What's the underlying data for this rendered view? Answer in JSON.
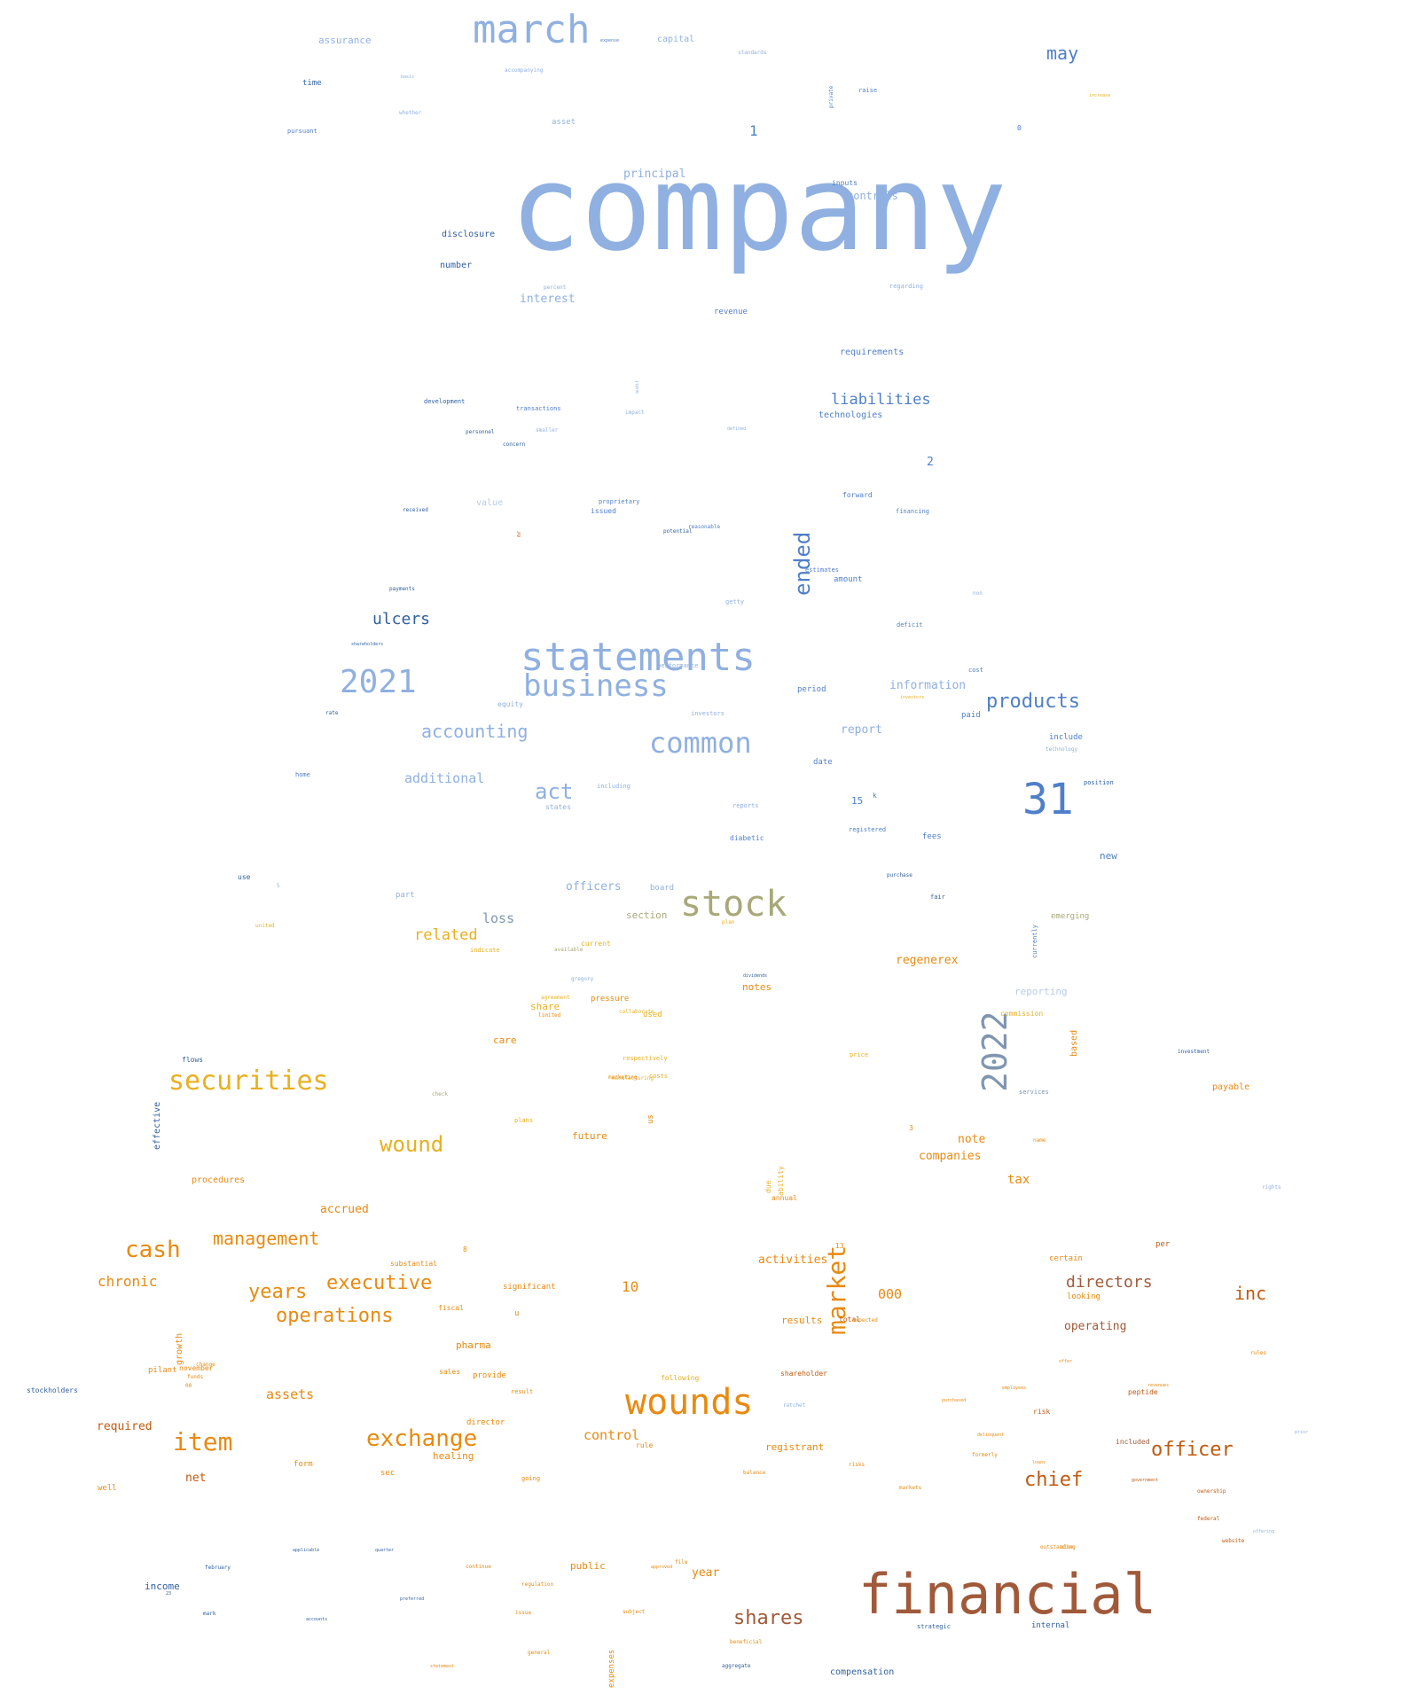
{
  "palette": {
    "light_blue": "#8fb0e0",
    "mid_blue": "#4f7fc8",
    "dark_blue": "#2f5f9f",
    "pale_blue": "#b8cbe8",
    "grey_blue": "#7f96b0",
    "olive": "#a8a878",
    "gold": "#e8b020",
    "orange": "#e88a10",
    "dark_orange": "#d86a00",
    "rust": "#c05a10",
    "brown": "#a05a3a"
  },
  "words": [
    {
      "text": "company",
      "color": "light_blue"
    },
    {
      "text": "financial",
      "color": "brown"
    },
    {
      "text": "statements",
      "color": "light_blue"
    },
    {
      "text": "march",
      "color": "light_blue"
    },
    {
      "text": "stock",
      "color": "olive"
    },
    {
      "text": "wounds",
      "color": "orange"
    },
    {
      "text": "31",
      "color": "mid_blue"
    },
    {
      "text": "2021",
      "color": "light_blue"
    },
    {
      "text": "2022",
      "color": "grey_blue"
    },
    {
      "text": "business",
      "color": "light_blue"
    },
    {
      "text": "common",
      "color": "light_blue"
    },
    {
      "text": "securities",
      "color": "gold"
    },
    {
      "text": "market",
      "color": "orange"
    },
    {
      "text": "products",
      "color": "mid_blue"
    },
    {
      "text": "exchange",
      "color": "orange"
    },
    {
      "text": "item",
      "color": "orange"
    },
    {
      "text": "cash",
      "color": "orange"
    },
    {
      "text": "shares",
      "color": "brown"
    },
    {
      "text": "officer",
      "color": "rust"
    },
    {
      "text": "chief",
      "color": "rust"
    },
    {
      "text": "wound",
      "color": "gold"
    },
    {
      "text": "act",
      "color": "light_blue"
    },
    {
      "text": "ended",
      "color": "mid_blue"
    },
    {
      "text": "may",
      "color": "mid_blue"
    },
    {
      "text": "management",
      "color": "orange"
    },
    {
      "text": "executive",
      "color": "orange"
    },
    {
      "text": "operations",
      "color": "orange"
    },
    {
      "text": "years",
      "color": "orange"
    },
    {
      "text": "accounting",
      "color": "light_blue"
    },
    {
      "text": "ulcers",
      "color": "dark_blue"
    },
    {
      "text": "directors",
      "color": "brown"
    },
    {
      "text": "inc",
      "color": "rust"
    },
    {
      "text": "liabilities",
      "color": "mid_blue"
    },
    {
      "text": "chronic",
      "color": "orange"
    },
    {
      "text": "related",
      "color": "gold"
    },
    {
      "text": "additional",
      "color": "light_blue"
    },
    {
      "text": "control",
      "color": "orange"
    },
    {
      "text": "loss",
      "color": "grey_blue"
    },
    {
      "text": "officers",
      "color": "light_blue"
    },
    {
      "text": "assets",
      "color": "orange"
    },
    {
      "text": "interest",
      "color": "light_blue"
    },
    {
      "text": "principal",
      "color": "light_blue"
    },
    {
      "text": "assurance",
      "color": "light_blue"
    },
    {
      "text": "capital",
      "color": "light_blue"
    },
    {
      "text": "controls",
      "color": "light_blue"
    },
    {
      "text": "10",
      "color": "orange"
    },
    {
      "text": "000",
      "color": "orange"
    },
    {
      "text": "activities",
      "color": "orange"
    },
    {
      "text": "regenerex",
      "color": "orange"
    },
    {
      "text": "note",
      "color": "orange"
    },
    {
      "text": "companies",
      "color": "orange"
    },
    {
      "text": "tax",
      "color": "orange"
    },
    {
      "text": "net",
      "color": "rust"
    },
    {
      "text": "required",
      "color": "rust"
    },
    {
      "text": "operating",
      "color": "brown"
    },
    {
      "text": "accrued",
      "color": "orange"
    },
    {
      "text": "information",
      "color": "light_blue"
    },
    {
      "text": "report",
      "color": "light_blue"
    },
    {
      "text": "reporting",
      "color": "pale_blue"
    },
    {
      "text": "income",
      "color": "dark_blue"
    },
    {
      "text": "notes",
      "color": "orange"
    },
    {
      "text": "future",
      "color": "orange"
    },
    {
      "text": "care",
      "color": "orange"
    },
    {
      "text": "share",
      "color": "gold"
    },
    {
      "text": "pharma",
      "color": "orange"
    },
    {
      "text": "public",
      "color": "orange"
    },
    {
      "text": "year",
      "color": "orange"
    },
    {
      "text": "registrant",
      "color": "orange"
    },
    {
      "text": "healing",
      "color": "orange"
    },
    {
      "text": "results",
      "color": "orange"
    },
    {
      "text": "procedures",
      "color": "orange"
    },
    {
      "text": "section",
      "color": "olive"
    },
    {
      "text": "technologies",
      "color": "mid_blue"
    },
    {
      "text": "requirements",
      "color": "mid_blue"
    },
    {
      "text": "disclosure",
      "color": "dark_blue"
    },
    {
      "text": "number",
      "color": "dark_blue"
    },
    {
      "text": "time",
      "color": "dark_blue"
    },
    {
      "text": "revenue",
      "color": "mid_blue"
    },
    {
      "text": "period",
      "color": "mid_blue"
    },
    {
      "text": "paid",
      "color": "mid_blue"
    },
    {
      "text": "include",
      "color": "mid_blue"
    },
    {
      "text": "date",
      "color": "mid_blue"
    },
    {
      "text": "15",
      "color": "mid_blue"
    },
    {
      "text": "fees",
      "color": "mid_blue"
    },
    {
      "text": "new",
      "color": "mid_blue"
    },
    {
      "text": "2",
      "color": "mid_blue"
    },
    {
      "text": "1",
      "color": "mid_blue"
    },
    {
      "text": "asset",
      "color": "light_blue"
    },
    {
      "text": "board",
      "color": "light_blue"
    },
    {
      "text": "part",
      "color": "light_blue"
    },
    {
      "text": "emerging",
      "color": "olive"
    },
    {
      "text": "payable",
      "color": "orange"
    },
    {
      "text": "based",
      "color": "orange"
    },
    {
      "text": "per",
      "color": "rust"
    },
    {
      "text": "certain",
      "color": "orange"
    },
    {
      "text": "significant",
      "color": "orange"
    },
    {
      "text": "shareholder",
      "color": "rust"
    },
    {
      "text": "peptide",
      "color": "rust"
    },
    {
      "text": "risk",
      "color": "rust"
    },
    {
      "text": "compensation",
      "color": "dark_blue"
    },
    {
      "text": "internal",
      "color": "dark_blue"
    },
    {
      "text": "stockholders",
      "color": "dark_blue"
    },
    {
      "text": "effective",
      "color": "dark_blue"
    },
    {
      "text": "growth",
      "color": "orange"
    },
    {
      "text": "pilant",
      "color": "orange"
    },
    {
      "text": "expenses",
      "color": "orange"
    },
    {
      "text": "form",
      "color": "orange"
    },
    {
      "text": "sec",
      "color": "orange"
    },
    {
      "text": "well",
      "color": "orange"
    },
    {
      "text": "director",
      "color": "orange"
    },
    {
      "text": "current",
      "color": "gold"
    },
    {
      "text": "used",
      "color": "gold"
    },
    {
      "text": "us",
      "color": "orange"
    },
    {
      "text": "looking",
      "color": "orange"
    },
    {
      "text": "diabetic",
      "color": "mid_blue"
    },
    {
      "text": "value",
      "color": "pale_blue"
    },
    {
      "text": "amount",
      "color": "mid_blue"
    },
    {
      "text": "forward",
      "color": "mid_blue"
    },
    {
      "text": "financing",
      "color": "mid_blue"
    },
    {
      "text": "issued",
      "color": "mid_blue"
    },
    {
      "text": "equity",
      "color": "light_blue"
    },
    {
      "text": "standards",
      "color": "light_blue"
    },
    {
      "text": "raise",
      "color": "mid_blue"
    },
    {
      "text": "inputs",
      "color": "mid_blue"
    },
    {
      "text": "development",
      "color": "dark_blue"
    },
    {
      "text": "transactions",
      "color": "mid_blue"
    },
    {
      "text": "deficit",
      "color": "mid_blue"
    },
    {
      "text": "cost",
      "color": "mid_blue"
    },
    {
      "text": "position",
      "color": "dark_blue"
    },
    {
      "text": "states",
      "color": "light_blue"
    },
    {
      "text": "use",
      "color": "dark_blue"
    },
    {
      "text": "flows",
      "color": "dark_blue"
    },
    {
      "text": "pursuant",
      "color": "mid_blue"
    },
    {
      "text": "0",
      "color": "mid_blue"
    },
    {
      "text": "k",
      "color": "mid_blue"
    },
    {
      "text": "commission",
      "color": "gold"
    },
    {
      "text": "services",
      "color": "grey_blue"
    },
    {
      "text": "ability",
      "color": "gold"
    },
    {
      "text": "due",
      "color": "gold"
    },
    {
      "text": "annual",
      "color": "orange"
    },
    {
      "text": "substantial",
      "color": "orange"
    },
    {
      "text": "fiscal",
      "color": "orange"
    },
    {
      "text": "sales",
      "color": "orange"
    },
    {
      "text": "provide",
      "color": "orange"
    },
    {
      "text": "rule",
      "color": "orange"
    },
    {
      "text": "following",
      "color": "gold"
    },
    {
      "text": "pressure",
      "color": "orange"
    },
    {
      "text": "3",
      "color": "orange"
    },
    {
      "text": "8",
      "color": "orange"
    },
    {
      "text": "13",
      "color": "orange"
    },
    {
      "text": "u",
      "color": "orange"
    },
    {
      "text": "total",
      "color": "rust"
    },
    {
      "text": "included",
      "color": "brown"
    },
    {
      "text": "strategic",
      "color": "dark_blue"
    },
    {
      "text": "home",
      "color": "mid_blue"
    },
    {
      "text": "regarding",
      "color": "light_blue"
    },
    {
      "text": "getty",
      "color": "light_blue"
    },
    {
      "text": "performance",
      "color": "light_blue"
    },
    {
      "text": "reports",
      "color": "light_blue"
    },
    {
      "text": "including",
      "color": "light_blue"
    },
    {
      "text": "investors",
      "color": "light_blue"
    },
    {
      "text": "reasonable",
      "color": "mid_blue"
    },
    {
      "text": "proprietary",
      "color": "mid_blue"
    },
    {
      "text": "estimates",
      "color": "mid_blue"
    },
    {
      "text": "registered",
      "color": "mid_blue"
    },
    {
      "text": "purchase",
      "color": "dark_blue"
    },
    {
      "text": "fair",
      "color": "dark_blue"
    },
    {
      "text": "technology",
      "color": "light_blue"
    },
    {
      "text": "non",
      "color": "light_blue"
    },
    {
      "text": "accompanying",
      "color": "light_blue"
    },
    {
      "text": "percent",
      "color": "light_blue"
    },
    {
      "text": "personnel",
      "color": "dark_blue"
    },
    {
      "text": "concern",
      "color": "dark_blue"
    },
    {
      "text": "potential",
      "color": "dark_blue"
    },
    {
      "text": "payments",
      "color": "dark_blue"
    },
    {
      "text": "received",
      "color": "dark_blue"
    },
    {
      "text": "shareholders",
      "color": "dark_blue"
    },
    {
      "text": "dividends",
      "color": "dark_blue"
    },
    {
      "text": "increase",
      "color": "gold"
    },
    {
      "text": "indicate",
      "color": "gold"
    },
    {
      "text": "available",
      "color": "olive"
    },
    {
      "text": "plan",
      "color": "gold"
    },
    {
      "text": "costs",
      "color": "gold"
    },
    {
      "text": "price",
      "color": "gold"
    },
    {
      "text": "respectively",
      "color": "gold"
    },
    {
      "text": "manufacturing",
      "color": "gold"
    },
    {
      "text": "marketing",
      "color": "orange"
    },
    {
      "text": "name",
      "color": "orange"
    },
    {
      "text": "result",
      "color": "orange"
    },
    {
      "text": "going",
      "color": "orange"
    },
    {
      "text": "balance",
      "color": "orange"
    },
    {
      "text": "risks",
      "color": "orange"
    },
    {
      "text": "markets",
      "color": "orange"
    },
    {
      "text": "formerly",
      "color": "orange"
    },
    {
      "text": "outstanding",
      "color": "orange"
    },
    {
      "text": "also",
      "color": "orange"
    },
    {
      "text": "website",
      "color": "rust"
    },
    {
      "text": "federal",
      "color": "rust"
    },
    {
      "text": "ownership",
      "color": "rust"
    },
    {
      "text": "rules",
      "color": "orange"
    },
    {
      "text": "expected",
      "color": "orange"
    },
    {
      "text": "beneficial",
      "color": "orange"
    },
    {
      "text": "issue",
      "color": "orange"
    },
    {
      "text": "file",
      "color": "orange"
    },
    {
      "text": "subject",
      "color": "orange"
    },
    {
      "text": "continue",
      "color": "orange"
    },
    {
      "text": "regulation",
      "color": "orange"
    },
    {
      "text": "plans",
      "color": "gold"
    },
    {
      "text": "agreement",
      "color": "gold"
    },
    {
      "text": "limited",
      "color": "orange"
    },
    {
      "text": "change",
      "color": "orange"
    },
    {
      "text": "funds",
      "color": "orange"
    },
    {
      "text": "00",
      "color": "orange"
    },
    {
      "text": "november",
      "color": "orange"
    },
    {
      "text": "february",
      "color": "dark_blue"
    },
    {
      "text": "23",
      "color": "dark_blue"
    },
    {
      "text": "mark",
      "color": "dark_blue"
    },
    {
      "text": "rate",
      "color": "dark_blue"
    },
    {
      "text": "investment",
      "color": "dark_blue"
    },
    {
      "text": "currently",
      "color": "mid_blue"
    },
    {
      "text": "rights",
      "color": "light_blue"
    },
    {
      "text": "check",
      "color": "olive"
    },
    {
      "text": "united",
      "color": "gold"
    },
    {
      "text": "collaborate",
      "color": "gold"
    },
    {
      "text": "gregory",
      "color": "light_blue"
    },
    {
      "text": "5",
      "color": "light_blue"
    },
    {
      "text": "whether",
      "color": "light_blue"
    },
    {
      "text": "basis",
      "color": "light_blue"
    },
    {
      "text": "expense",
      "color": "mid_blue"
    },
    {
      "text": "private",
      "color": "mid_blue"
    },
    {
      "text": "ratchet",
      "color": "light_blue"
    },
    {
      "text": "smaller",
      "color": "light_blue"
    },
    {
      "text": "mr",
      "color": "rust"
    },
    {
      "text": "audit",
      "color": "light_blue"
    },
    {
      "text": "defined",
      "color": "light_blue"
    },
    {
      "text": "impact",
      "color": "light_blue"
    },
    {
      "text": "prior",
      "color": "light_blue"
    },
    {
      "text": "offering",
      "color": "light_blue"
    },
    {
      "text": "government",
      "color": "rust"
    },
    {
      "text": "revenues",
      "color": "orange"
    },
    {
      "text": "statement",
      "color": "orange"
    },
    {
      "text": "general",
      "color": "orange"
    },
    {
      "text": "aggregate",
      "color": "dark_blue"
    },
    {
      "text": "accounts",
      "color": "dark_blue"
    },
    {
      "text": "applicable",
      "color": "dark_blue"
    },
    {
      "text": "preferred",
      "color": "dark_blue"
    },
    {
      "text": "quarter",
      "color": "dark_blue"
    },
    {
      "text": "purchased",
      "color": "orange"
    },
    {
      "text": "employees",
      "color": "orange"
    },
    {
      "text": "delinquent",
      "color": "orange"
    },
    {
      "text": "offer",
      "color": "orange"
    },
    {
      "text": "loans",
      "color": "orange"
    },
    {
      "text": "approved",
      "color": "orange"
    },
    {
      "text": "investors",
      "color": "gold"
    }
  ]
}
